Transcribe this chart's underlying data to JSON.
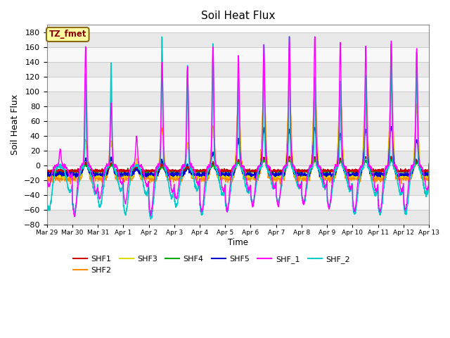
{
  "title": "Soil Heat Flux",
  "ylabel": "Soil Heat Flux",
  "xlabel": "Time",
  "annotation_text": "TZ_fmet",
  "annotation_bg": "#FFFFA0",
  "annotation_border": "#8B6914",
  "annotation_text_color": "#8B0000",
  "ylim": [
    -80,
    190
  ],
  "yticks": [
    -80,
    -60,
    -40,
    -20,
    0,
    20,
    40,
    60,
    80,
    100,
    120,
    140,
    160,
    180
  ],
  "series": {
    "SHF1": {
      "color": "#CC0000",
      "lw": 0.9
    },
    "SHF2": {
      "color": "#FF8C00",
      "lw": 1.0
    },
    "SHF3": {
      "color": "#DDDD00",
      "lw": 0.9
    },
    "SHF4": {
      "color": "#00AA00",
      "lw": 1.0
    },
    "SHF5": {
      "color": "#0000CC",
      "lw": 1.0
    },
    "SHF_1": {
      "color": "#FF00FF",
      "lw": 1.0
    },
    "SHF_2": {
      "color": "#00CCCC",
      "lw": 1.2
    }
  },
  "grid_color": "#CCCCCC",
  "plot_bg": "#FFFFFF",
  "fig_bg": "#FFFFFF",
  "n_days": 15,
  "xtick_labels": [
    "Mar 29",
    "Mar 30",
    "Mar 31",
    "Apr 1",
    "Apr 2",
    "Apr 3",
    "Apr 4",
    "Apr 5",
    "Apr 6",
    "Apr 7",
    "Apr 8",
    "Apr 9",
    "Apr 10",
    "Apr 11",
    "Apr 12",
    "Apr 13"
  ],
  "legend_entries": [
    "SHF1",
    "SHF2",
    "SHF3",
    "SHF4",
    "SHF5",
    "SHF_1",
    "SHF_2"
  ],
  "band_colors": [
    "#E8E8E8",
    "#F8F8F8"
  ]
}
